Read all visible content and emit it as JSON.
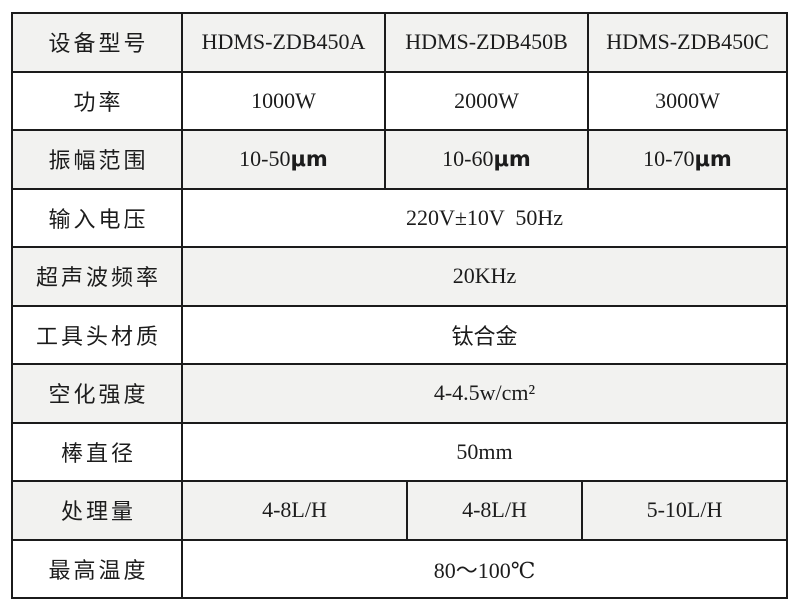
{
  "table": {
    "title": "ultrasonic-equipment-spec-table",
    "border_color": "#1b1b1b",
    "shade_color": "#f2f2f0",
    "text_color": "#1c1c1c",
    "rows": [
      {
        "label": "设备型号",
        "cells": [
          "HDMS-ZDB450A",
          "HDMS-ZDB450B",
          "HDMS-ZDB450C"
        ]
      },
      {
        "label": "功率",
        "cells": [
          "1000W",
          "2000W",
          "3000W"
        ]
      },
      {
        "label": "振幅范围",
        "cells": [
          {
            "val": "10-50",
            "unit": "μm"
          },
          {
            "val": "10-60",
            "unit": "μm"
          },
          {
            "val": "10-70",
            "unit": "μm"
          }
        ]
      },
      {
        "label": "输入电压",
        "span": "220V±10V  50Hz"
      },
      {
        "label": "超声波频率",
        "span": "20KHz"
      },
      {
        "label": "工具头材质",
        "span": "钛合金"
      },
      {
        "label": "空化强度",
        "span": "4-4.5w/cm²"
      },
      {
        "label": "棒直径",
        "span": "50mm"
      },
      {
        "label": "处理量",
        "cells": [
          "4-8L/H",
          "4-8L/H",
          "5-10L/H"
        ]
      },
      {
        "label": "最高温度",
        "span": "80～100℃"
      }
    ]
  }
}
